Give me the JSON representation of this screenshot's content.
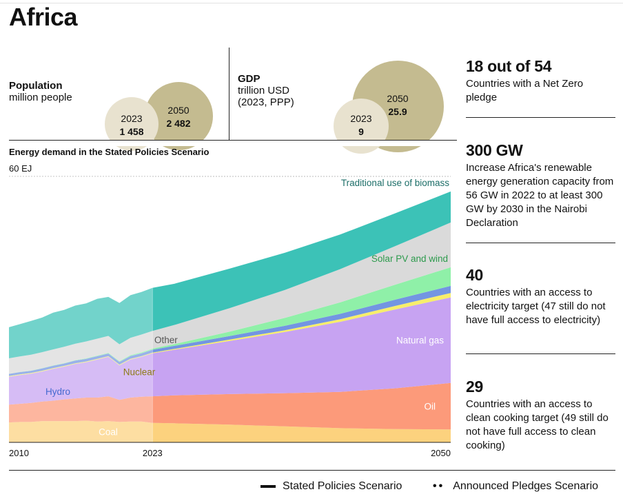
{
  "page": {
    "title": "Africa"
  },
  "population": {
    "label": "Population",
    "unit": "million people",
    "year_a": "2023",
    "value_a": "1 458",
    "year_b": "2050",
    "value_b": "2 482"
  },
  "gdp": {
    "label": "GDP",
    "unit_line1": "trillion USD",
    "unit_line2": "(2023, PPP)",
    "year_a": "2023",
    "value_a": "9",
    "year_b": "2050",
    "value_b": "25.9"
  },
  "colors": {
    "coal": "#fcd27e",
    "oil": "#fc9a7a",
    "natural_gas": "#c7a3f2",
    "nuclear": "#f7ee6b",
    "hydro": "#7395e2",
    "solar_wind": "#8ff0a8",
    "other": "#dadada",
    "biomass": "#3cc2b7",
    "bubble_light": "#e8e2cf",
    "bubble_dark": "#c4bb90"
  },
  "chart_data": {
    "type": "area",
    "title": "Energy demand in the Stated Policies Scenario",
    "ylabel": "60 EJ",
    "ylim": [
      0,
      60
    ],
    "stacked": true,
    "x": [
      2010,
      2011,
      2012,
      2013,
      2014,
      2015,
      2016,
      2017,
      2018,
      2019,
      2020,
      2021,
      2022,
      2023,
      2025,
      2030,
      2035,
      2040,
      2045,
      2050
    ],
    "x_tick_labels": [
      "2010",
      "2023",
      "2050"
    ],
    "history_end": 2023,
    "series": [
      {
        "name": "Coal",
        "key": "coal",
        "values": [
          4.5,
          4.6,
          4.6,
          4.8,
          4.8,
          4.8,
          4.8,
          4.9,
          4.7,
          4.8,
          4.6,
          4.7,
          4.7,
          4.4,
          4.3,
          4.0,
          3.6,
          3.2,
          3.0,
          2.9
        ]
      },
      {
        "name": "Oil",
        "key": "oil",
        "values": [
          4.0,
          4.1,
          4.3,
          4.4,
          4.6,
          4.9,
          5.1,
          5.2,
          5.4,
          5.6,
          5.0,
          5.4,
          5.6,
          6.0,
          6.3,
          6.9,
          7.5,
          8.2,
          9.2,
          10.5
        ]
      },
      {
        "name": "Natural gas",
        "key": "natural_gas",
        "values": [
          6.3,
          6.5,
          6.6,
          6.8,
          7.2,
          7.4,
          7.8,
          8.0,
          8.6,
          8.9,
          7.8,
          8.6,
          9.0,
          9.7,
          10.3,
          12.0,
          13.8,
          15.8,
          17.8,
          19.3
        ]
      },
      {
        "name": "Nuclear",
        "key": "nuclear",
        "values": [
          0.15,
          0.15,
          0.15,
          0.15,
          0.15,
          0.15,
          0.15,
          0.15,
          0.15,
          0.15,
          0.15,
          0.15,
          0.15,
          0.15,
          0.2,
          0.3,
          0.4,
          0.6,
          0.8,
          1.0
        ]
      },
      {
        "name": "Hydro",
        "key": "hydro",
        "values": [
          0.5,
          0.5,
          0.5,
          0.55,
          0.55,
          0.55,
          0.6,
          0.6,
          0.6,
          0.6,
          0.6,
          0.65,
          0.65,
          0.65,
          0.7,
          0.8,
          1.0,
          1.2,
          1.4,
          1.6
        ]
      },
      {
        "name": "Solar PV and wind",
        "key": "solar_wind",
        "values": [
          0.02,
          0.03,
          0.04,
          0.05,
          0.07,
          0.08,
          0.1,
          0.12,
          0.14,
          0.16,
          0.18,
          0.2,
          0.22,
          0.25,
          0.4,
          1.0,
          1.8,
          2.6,
          3.4,
          4.2
        ]
      },
      {
        "name": "Other",
        "key": "other",
        "values": [
          3.5,
          3.5,
          3.6,
          3.6,
          3.6,
          3.7,
          3.7,
          3.8,
          3.8,
          3.8,
          3.8,
          3.9,
          4.0,
          4.0,
          4.3,
          5.3,
          6.3,
          7.5,
          8.7,
          10.1
        ]
      },
      {
        "name": "Traditional use of biomass",
        "key": "biomass",
        "values": [
          7.0,
          7.3,
          7.6,
          7.8,
          8.3,
          8.3,
          8.6,
          8.6,
          9.0,
          8.8,
          9.3,
          9.6,
          9.6,
          9.7,
          9.3,
          8.9,
          8.4,
          7.8,
          7.4,
          7.0
        ]
      }
    ]
  },
  "sidebar": [
    {
      "big": "18 out of 54",
      "text": "Countries with a Net Zero pledge"
    },
    {
      "big": "300 GW",
      "text": "Increase Africa's renewable energy generation capacity from 56 GW in 2022 to at least 300 GW by 2030 in the Nairobi Declaration"
    },
    {
      "big": "40",
      "text": "Countries with an access to electricity target (47 still do not have full access to electricity)"
    },
    {
      "big": "29",
      "text": "Countries with an access to clean cooking target (49 still do not have full access to clean cooking)"
    }
  ],
  "legend": {
    "stated": "Stated Policies Scenario",
    "announced": "Announced Pledges Scenario"
  }
}
